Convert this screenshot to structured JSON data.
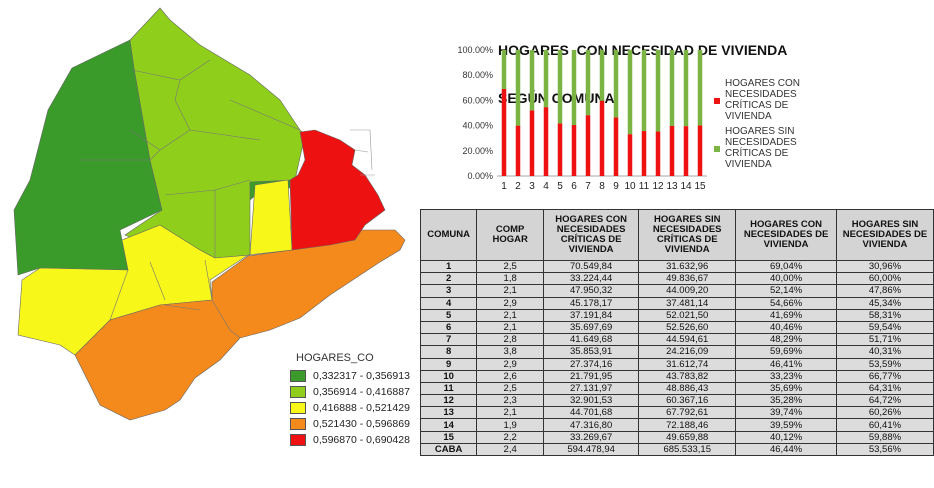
{
  "map_legend": {
    "title": "HOGARES_CO",
    "items": [
      {
        "label": "0,332317 - 0,356913",
        "color": "#3a9b2b"
      },
      {
        "label": "0,356914 - 0,416887",
        "color": "#8fcf1c"
      },
      {
        "label": "0,416888 - 0,521429",
        "color": "#f7f71a"
      },
      {
        "label": "0,521430 - 0,596869",
        "color": "#f58a1c"
      },
      {
        "label": "0,596870 - 0,690428",
        "color": "#ee1111"
      }
    ]
  },
  "chart_data": {
    "type": "bar",
    "stacked": true,
    "title_line1": "HOGARES  CON NECESIDAD DE VIVIENDA",
    "title_line2": "SEGÚN COMUNA",
    "categories": [
      "1",
      "2",
      "3",
      "4",
      "5",
      "6",
      "7",
      "8",
      "9",
      "10",
      "11",
      "12",
      "13",
      "14",
      "15"
    ],
    "series": [
      {
        "name": "HOGARES CON NECESIDADES CRÍTICAS DE VIVIENDA",
        "color": "#ee1111",
        "values": [
          69.04,
          40.0,
          52.14,
          54.66,
          41.69,
          40.46,
          48.29,
          59.69,
          46.41,
          33.23,
          35.69,
          35.28,
          39.74,
          39.59,
          40.12
        ]
      },
      {
        "name": "HOGARES SIN NECESIDADES CRÍTICAS DE VIVIENDA",
        "color": "#7cb444",
        "values": [
          30.96,
          60.0,
          47.86,
          45.34,
          58.31,
          59.54,
          51.71,
          40.31,
          53.59,
          66.77,
          64.31,
          64.72,
          60.26,
          60.41,
          59.88
        ]
      }
    ],
    "ylim": [
      0,
      100
    ],
    "yticks": [
      "0.00%",
      "20.00%",
      "40.00%",
      "60.00%",
      "80.00%",
      "100.00%"
    ],
    "legend_position": "right"
  },
  "table": {
    "headers": [
      "COMUNA",
      "COMP HOGAR",
      "HOGARES CON NECESIDADES CRÍTICAS DE VIVIENDA",
      "HOGARES SIN NECESIDADES CRÍTICAS DE VIVIENDA",
      "HOGARES CON NECESIDADES DE VIVIENDA",
      "HOGARES SIN NECESIDADES DE VIVIENDA"
    ],
    "rows": [
      [
        "1",
        "2,5",
        "70.549,84",
        "31.632,96",
        "69,04%",
        "30,96%"
      ],
      [
        "2",
        "1,8",
        "33.224,44",
        "49.836,67",
        "40,00%",
        "60,00%"
      ],
      [
        "3",
        "2,1",
        "47.950,32",
        "44.009,20",
        "52,14%",
        "47,86%"
      ],
      [
        "4",
        "2,9",
        "45.178,17",
        "37.481,14",
        "54,66%",
        "45,34%"
      ],
      [
        "5",
        "2,1",
        "37.191,84",
        "52.021,50",
        "41,69%",
        "58,31%"
      ],
      [
        "6",
        "2,1",
        "35.697,69",
        "52.526,60",
        "40,46%",
        "59,54%"
      ],
      [
        "7",
        "2,8",
        "41.649,68",
        "44.594,61",
        "48,29%",
        "51,71%"
      ],
      [
        "8",
        "3,8",
        "35.853,91",
        "24.216,09",
        "59,69%",
        "40,31%"
      ],
      [
        "9",
        "2,9",
        "27.374,16",
        "31.612,74",
        "46,41%",
        "53,59%"
      ],
      [
        "10",
        "2,6",
        "21.791,95",
        "43.783,82",
        "33,23%",
        "66,77%"
      ],
      [
        "11",
        "2,5",
        "27.131,97",
        "48.886,43",
        "35,69%",
        "64,31%"
      ],
      [
        "12",
        "2,3",
        "32.901,53",
        "60.367,16",
        "35,28%",
        "64,72%"
      ],
      [
        "13",
        "2,1",
        "44.701,68",
        "67.792,61",
        "39,74%",
        "60,26%"
      ],
      [
        "14",
        "1,9",
        "47.316,80",
        "72.188,46",
        "39,59%",
        "60,41%"
      ],
      [
        "15",
        "2,2",
        "33.269,67",
        "49.659,88",
        "40,12%",
        "59,88%"
      ],
      [
        "CABA",
        "2,4",
        "594.478,94",
        "685.533,15",
        "46,44%",
        "53,56%"
      ]
    ]
  }
}
